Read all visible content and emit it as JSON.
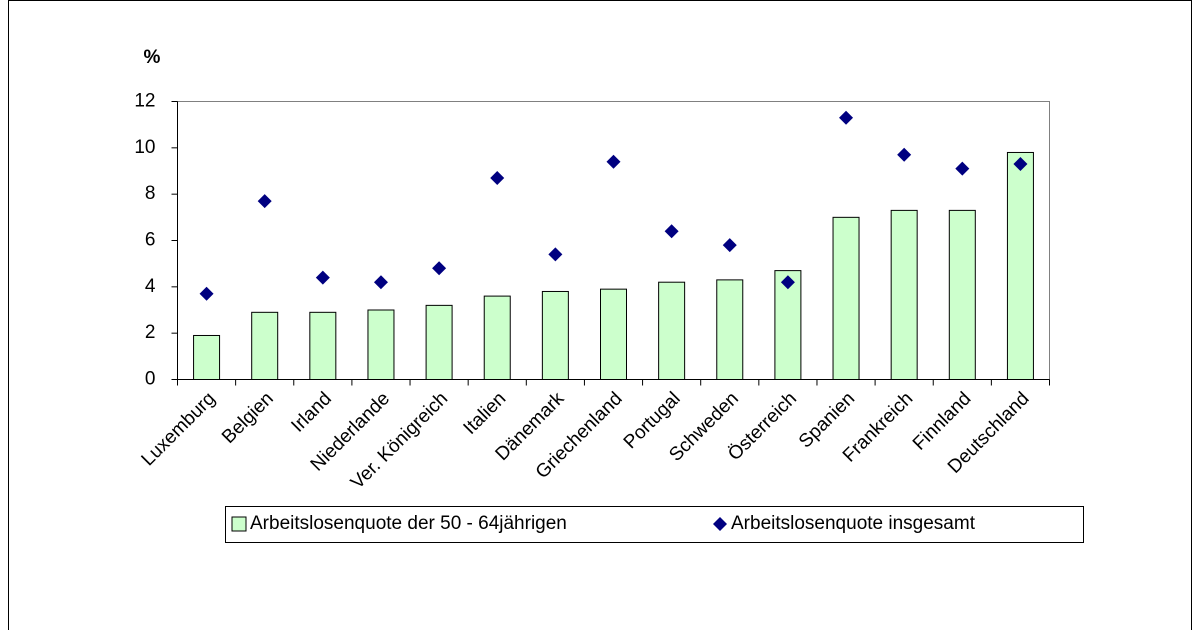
{
  "chart_data": {
    "type": "bar",
    "ylabel": "%",
    "categories": [
      "Luxemburg",
      "Belgien",
      "Irland",
      "Niederlande",
      "Ver. Königreich",
      "Italien",
      "Dänemark",
      "Griechenland",
      "Portugal",
      "Schweden",
      "Österreich",
      "Spanien",
      "Frankreich",
      "Finnland",
      "Deutschland"
    ],
    "series": [
      {
        "name": "Arbeitslosenquote der 50 - 64jährigen",
        "type": "bar",
        "color": "#ccffcc",
        "values": [
          1.9,
          2.9,
          2.9,
          3.0,
          3.2,
          3.6,
          3.8,
          3.9,
          4.2,
          4.3,
          4.7,
          7.0,
          7.3,
          7.3,
          9.8
        ]
      },
      {
        "name": "Arbeitslosenquote insgesamt",
        "type": "scatter",
        "color": "#000080",
        "values": [
          3.7,
          7.7,
          4.4,
          4.2,
          4.8,
          8.7,
          5.4,
          9.4,
          6.4,
          5.8,
          4.2,
          11.3,
          9.7,
          9.1,
          9.3
        ]
      }
    ],
    "ylim": [
      0,
      12
    ],
    "yticks": [
      0,
      2,
      4,
      6,
      8,
      10,
      12
    ],
    "legend": "bottom"
  }
}
